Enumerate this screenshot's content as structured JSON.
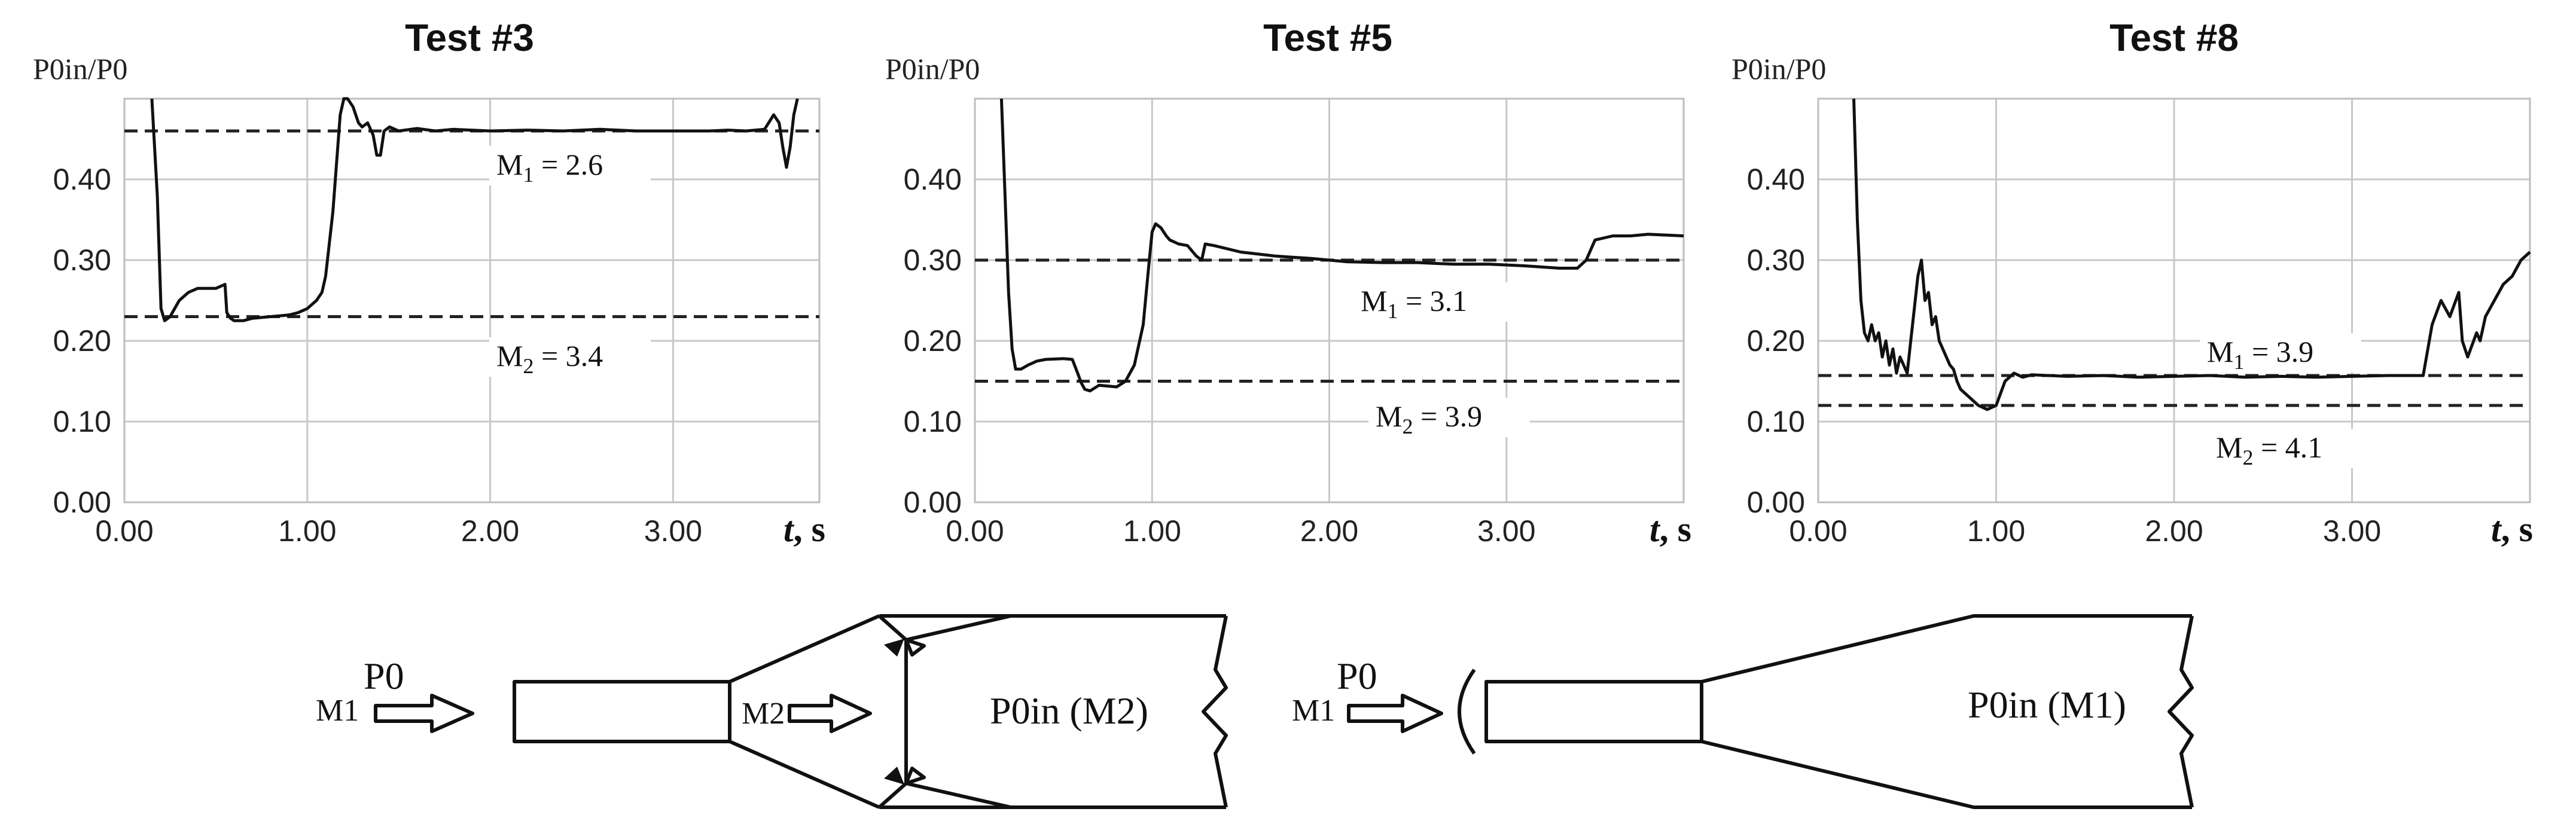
{
  "chart_data": [
    {
      "type": "line",
      "title": "Test #3",
      "ylabel": "P0in/P0",
      "xlabel": "t, s",
      "xlim": [
        0,
        3.8
      ],
      "ylim": [
        0,
        0.5
      ],
      "xticks": [
        "0.00",
        "1.00",
        "2.00",
        "3.00"
      ],
      "yticks": [
        "0.00",
        "0.10",
        "0.20",
        "0.30",
        "0.40"
      ],
      "grid": true,
      "reference_lines": [
        {
          "y": 0.46,
          "label": "M1 = 2.6"
        },
        {
          "y": 0.23,
          "label": "M2 = 3.4"
        }
      ],
      "series": [
        {
          "x": [
            0.15,
            0.18,
            0.2,
            0.22,
            0.25,
            0.3,
            0.35,
            0.4,
            0.45,
            0.5,
            0.55,
            0.56,
            0.58,
            0.6,
            0.65,
            0.7,
            0.8,
            0.9,
            0.95,
            1.0,
            1.05,
            1.08,
            1.1,
            1.12,
            1.14,
            1.16,
            1.18,
            1.2,
            1.22,
            1.25,
            1.28,
            1.3,
            1.33,
            1.36,
            1.38,
            1.4,
            1.42,
            1.45,
            1.5,
            1.6,
            1.7,
            1.8,
            2.0,
            2.2,
            2.4,
            2.6,
            2.8,
            3.0,
            3.2,
            3.3,
            3.4,
            3.5,
            3.55,
            3.58,
            3.6,
            3.62,
            3.64,
            3.66,
            3.68
          ],
          "y": [
            0.5,
            0.38,
            0.24,
            0.225,
            0.23,
            0.25,
            0.26,
            0.265,
            0.265,
            0.265,
            0.27,
            0.235,
            0.228,
            0.225,
            0.225,
            0.228,
            0.23,
            0.232,
            0.235,
            0.24,
            0.25,
            0.26,
            0.28,
            0.32,
            0.36,
            0.42,
            0.48,
            0.5,
            0.5,
            0.49,
            0.47,
            0.465,
            0.47,
            0.455,
            0.43,
            0.43,
            0.46,
            0.465,
            0.46,
            0.463,
            0.46,
            0.462,
            0.46,
            0.461,
            0.46,
            0.462,
            0.46,
            0.46,
            0.46,
            0.461,
            0.46,
            0.462,
            0.48,
            0.47,
            0.44,
            0.415,
            0.44,
            0.48,
            0.5
          ]
        }
      ]
    },
    {
      "type": "line",
      "title": "Test #5",
      "ylabel": "P0in/P0",
      "xlabel": "t, s",
      "xlim": [
        0,
        4.0
      ],
      "ylim": [
        0,
        0.5
      ],
      "xticks": [
        "0.00",
        "1.00",
        "2.00",
        "3.00"
      ],
      "yticks": [
        "0.00",
        "0.10",
        "0.20",
        "0.30",
        "0.40"
      ],
      "grid": true,
      "reference_lines": [
        {
          "y": 0.3,
          "label": "M1 = 3.1"
        },
        {
          "y": 0.15,
          "label": "M2 = 3.9"
        }
      ],
      "series": [
        {
          "x": [
            0.15,
            0.17,
            0.19,
            0.21,
            0.23,
            0.26,
            0.3,
            0.35,
            0.4,
            0.5,
            0.55,
            0.58,
            0.6,
            0.62,
            0.65,
            0.7,
            0.8,
            0.85,
            0.9,
            0.95,
            0.98,
            1.0,
            1.02,
            1.05,
            1.08,
            1.1,
            1.15,
            1.2,
            1.25,
            1.28,
            1.3,
            1.35,
            1.5,
            1.7,
            1.9,
            2.1,
            2.3,
            2.5,
            2.7,
            2.9,
            3.1,
            3.3,
            3.4,
            3.45,
            3.5,
            3.6,
            3.7,
            3.8,
            3.9,
            4.0
          ],
          "y": [
            0.5,
            0.38,
            0.26,
            0.19,
            0.165,
            0.165,
            0.17,
            0.175,
            0.177,
            0.178,
            0.177,
            0.16,
            0.148,
            0.14,
            0.138,
            0.145,
            0.143,
            0.15,
            0.17,
            0.22,
            0.29,
            0.335,
            0.345,
            0.34,
            0.33,
            0.325,
            0.32,
            0.318,
            0.305,
            0.3,
            0.32,
            0.318,
            0.31,
            0.305,
            0.302,
            0.298,
            0.297,
            0.297,
            0.295,
            0.295,
            0.293,
            0.29,
            0.29,
            0.3,
            0.325,
            0.33,
            0.33,
            0.332,
            0.331,
            0.33
          ]
        }
      ]
    },
    {
      "type": "line",
      "title": "Test #8",
      "ylabel": "P0in/P0",
      "xlabel": "t, s",
      "xlim": [
        0,
        4.0
      ],
      "ylim": [
        0,
        0.5
      ],
      "xticks": [
        "0.00",
        "1.00",
        "2.00",
        "3.00"
      ],
      "yticks": [
        "0.00",
        "0.10",
        "0.20",
        "0.30",
        "0.40"
      ],
      "grid": true,
      "reference_lines": [
        {
          "y": 0.157,
          "label": "M1 = 3.9"
        },
        {
          "y": 0.12,
          "label": "M2 = 4.1"
        }
      ],
      "series": [
        {
          "x": [
            0.2,
            0.22,
            0.24,
            0.26,
            0.28,
            0.3,
            0.32,
            0.34,
            0.36,
            0.38,
            0.4,
            0.42,
            0.44,
            0.46,
            0.48,
            0.5,
            0.52,
            0.54,
            0.56,
            0.58,
            0.6,
            0.62,
            0.64,
            0.66,
            0.68,
            0.7,
            0.72,
            0.74,
            0.76,
            0.78,
            0.8,
            0.85,
            0.9,
            0.95,
            1.0,
            1.05,
            1.1,
            1.15,
            1.2,
            1.4,
            1.6,
            1.8,
            2.0,
            2.2,
            2.4,
            2.6,
            2.8,
            3.0,
            3.2,
            3.4,
            3.45,
            3.5,
            3.55,
            3.6,
            3.62,
            3.65,
            3.7,
            3.72,
            3.75,
            3.8,
            3.85,
            3.9,
            3.95,
            4.0
          ],
          "y": [
            0.5,
            0.35,
            0.25,
            0.21,
            0.2,
            0.22,
            0.2,
            0.21,
            0.18,
            0.2,
            0.17,
            0.19,
            0.16,
            0.18,
            0.17,
            0.16,
            0.2,
            0.24,
            0.28,
            0.3,
            0.25,
            0.26,
            0.22,
            0.23,
            0.2,
            0.19,
            0.18,
            0.17,
            0.165,
            0.15,
            0.14,
            0.13,
            0.12,
            0.115,
            0.12,
            0.15,
            0.16,
            0.155,
            0.158,
            0.156,
            0.157,
            0.155,
            0.156,
            0.157,
            0.155,
            0.156,
            0.155,
            0.156,
            0.157,
            0.157,
            0.22,
            0.25,
            0.23,
            0.26,
            0.2,
            0.18,
            0.21,
            0.2,
            0.23,
            0.25,
            0.27,
            0.28,
            0.3,
            0.31
          ]
        }
      ]
    }
  ],
  "diagrams": [
    {
      "p0": "P0",
      "m_in": "M1",
      "m_mid": "M2",
      "chamber": "P0in (M2)"
    },
    {
      "p0": "P0",
      "m_in": "M1",
      "chamber": "P0in (M1)"
    }
  ]
}
